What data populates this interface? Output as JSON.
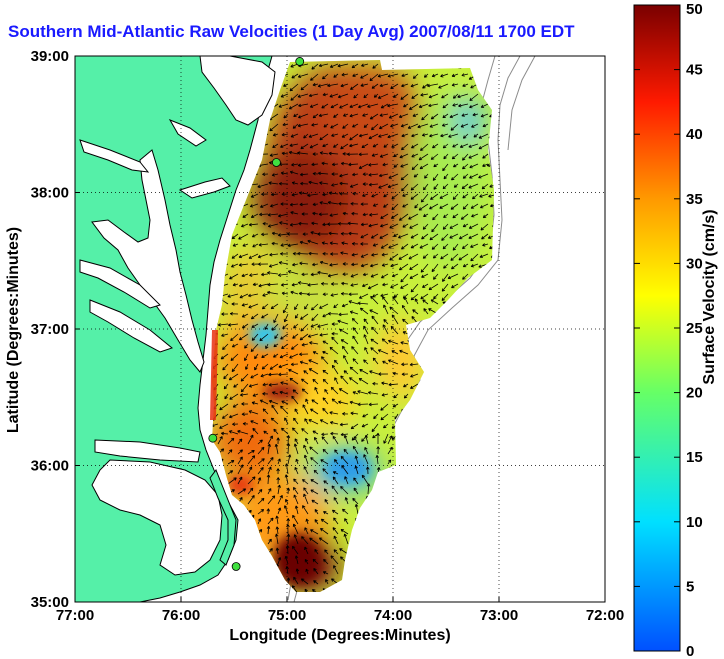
{
  "title": "Southern Mid-Atlantic Raw Velocities (1 Day Avg) 2007/08/11 1700 EDT",
  "chart_data": {
    "type": "heatmap",
    "title": "Southern Mid-Atlantic Raw Velocities (1 Day Avg) 2007/08/11 1700 EDT",
    "xlabel": "Longitude (Degrees:Minutes)",
    "ylabel": "Latitude (Degrees:Minutes)",
    "x_ticks": [
      "77:00",
      "76:00",
      "75:00",
      "74:00",
      "73:00",
      "72:00"
    ],
    "y_ticks": [
      "39:00",
      "38:00",
      "37:00",
      "36:00",
      "35:00"
    ],
    "xlim": [
      -77,
      -72
    ],
    "ylim": [
      35,
      39
    ],
    "grid": true,
    "colorbar": {
      "label": "Surface Velocity (cm/s)",
      "ticks": [
        "0",
        "5",
        "10",
        "15",
        "20",
        "25",
        "30",
        "35",
        "40",
        "45",
        "50"
      ],
      "range": [
        0,
        50
      ]
    },
    "stations": [
      {
        "lon": -74.88,
        "lat": 38.96
      },
      {
        "lon": -75.1,
        "lat": 38.22
      },
      {
        "lon": -75.7,
        "lat": 36.2
      },
      {
        "lon": -75.48,
        "lat": 35.26
      }
    ]
  },
  "colors": {
    "land": "#55f0a8",
    "coast": "#000000",
    "title": "#1a1aff",
    "bathymetry": "#8c8c8c"
  }
}
